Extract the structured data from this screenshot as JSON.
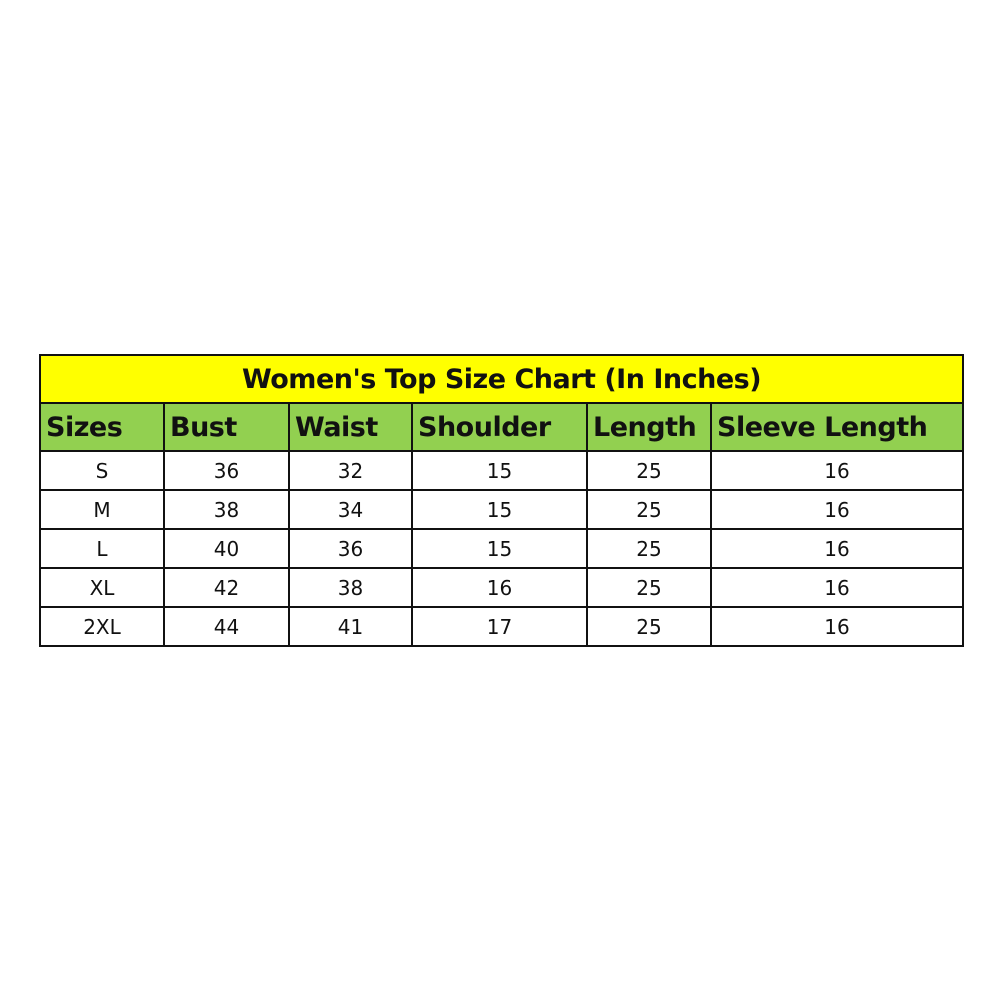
{
  "title": "Women's Top Size Chart (In Inches)",
  "colors": {
    "title_bg": "#FFFF00",
    "header_bg": "#92D050"
  },
  "headers": [
    "Sizes",
    "Bust",
    "Waist",
    "Shoulder",
    "Length",
    "Sleeve Length"
  ],
  "rows": [
    [
      "S",
      "36",
      "32",
      "15",
      "25",
      "16"
    ],
    [
      "M",
      "38",
      "34",
      "15",
      "25",
      "16"
    ],
    [
      "L",
      "40",
      "36",
      "15",
      "25",
      "16"
    ],
    [
      "XL",
      "42",
      "38",
      "16",
      "25",
      "16"
    ],
    [
      "2XL",
      "44",
      "41",
      "17",
      "25",
      "16"
    ]
  ]
}
